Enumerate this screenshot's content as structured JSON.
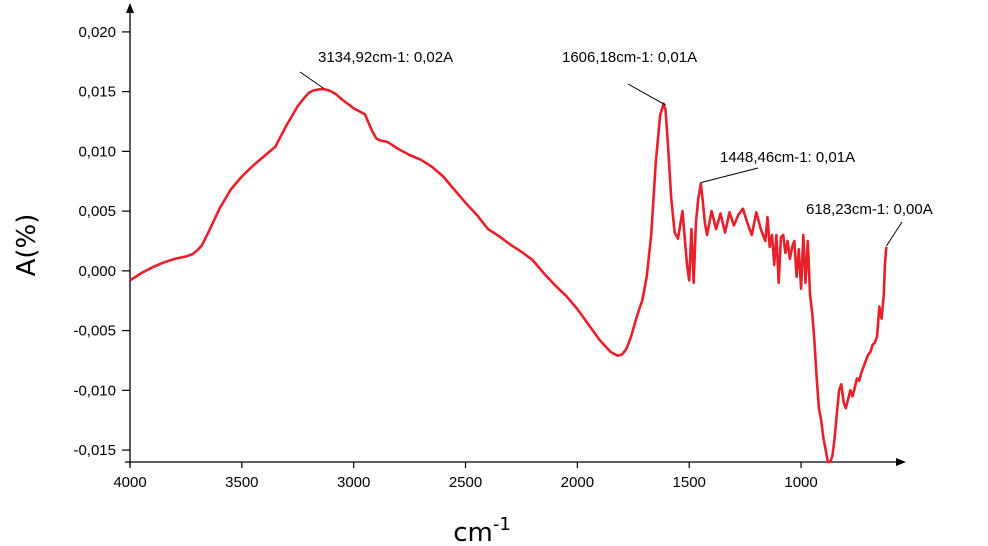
{
  "chart_data": {
    "type": "line",
    "xlabel": "cm",
    "xlabel_superscript": "-1",
    "ylabel": "A(%)",
    "x_reversed": true,
    "xlim": [
      4000,
      580
    ],
    "ylim": [
      -0.016,
      0.022
    ],
    "x_ticks": [
      4000,
      3500,
      3000,
      2500,
      2000,
      1500,
      1000
    ],
    "x_tick_labels": [
      "4000",
      "3500",
      "3000",
      "2500",
      "2000",
      "1500",
      "1000"
    ],
    "y_ticks": [
      -0.015,
      -0.01,
      -0.005,
      0.0,
      0.005,
      0.01,
      0.015,
      0.02
    ],
    "y_tick_labels": [
      "-0,015",
      "-0,010",
      "-0,005",
      "0,000",
      "0,005",
      "0,010",
      "0,015",
      "0,020"
    ],
    "grid": false,
    "line_color": "#e8202a",
    "series": [
      {
        "x": [
          4000,
          3950,
          3900,
          3850,
          3800,
          3750,
          3720,
          3700,
          3680,
          3650,
          3600,
          3550,
          3500,
          3450,
          3400,
          3350,
          3300,
          3250,
          3220,
          3200,
          3180,
          3150,
          3134,
          3110,
          3080,
          3050,
          3020,
          3000,
          2980,
          2950,
          2920,
          2900,
          2880,
          2850,
          2800,
          2750,
          2700,
          2650,
          2600,
          2550,
          2500,
          2450,
          2400,
          2350,
          2300,
          2250,
          2200,
          2150,
          2100,
          2050,
          2000,
          1950,
          1900,
          1850,
          1820,
          1800,
          1780,
          1760,
          1740,
          1720,
          1710,
          1690,
          1670,
          1650,
          1630,
          1615,
          1606,
          1595,
          1580,
          1565,
          1550,
          1530,
          1510,
          1500,
          1490,
          1480,
          1470,
          1460,
          1448,
          1440,
          1430,
          1420,
          1400,
          1380,
          1360,
          1340,
          1320,
          1300,
          1280,
          1260,
          1240,
          1220,
          1200,
          1180,
          1160,
          1150,
          1140,
          1130,
          1120,
          1110,
          1100,
          1090,
          1080,
          1070,
          1060,
          1050,
          1040,
          1030,
          1020,
          1010,
          1000,
          990,
          980,
          970,
          960,
          950,
          940,
          930,
          920,
          910,
          900,
          890,
          880,
          870,
          860,
          850,
          840,
          830,
          820,
          810,
          800,
          790,
          780,
          770,
          760,
          750,
          740,
          730,
          720,
          710,
          700,
          690,
          680,
          670,
          660,
          650,
          640,
          630,
          625,
          620,
          618
        ],
        "y": [
          -0.0008,
          -0.0002,
          0.0003,
          0.0007,
          0.001,
          0.0012,
          0.0014,
          0.0017,
          0.0021,
          0.0032,
          0.0052,
          0.0068,
          0.0079,
          0.0088,
          0.0096,
          0.0104,
          0.0122,
          0.0138,
          0.0145,
          0.0149,
          0.0151,
          0.0152,
          0.0152,
          0.0151,
          0.0148,
          0.0143,
          0.0139,
          0.0136,
          0.0134,
          0.0131,
          0.0118,
          0.0111,
          0.0109,
          0.0108,
          0.0102,
          0.0097,
          0.0093,
          0.0087,
          0.0079,
          0.0068,
          0.0057,
          0.0047,
          0.0035,
          0.0029,
          0.0022,
          0.0016,
          0.0009,
          -0.0002,
          -0.0012,
          -0.0021,
          -0.0032,
          -0.0045,
          -0.0058,
          -0.0068,
          -0.0071,
          -0.007,
          -0.0065,
          -0.0055,
          -0.0042,
          -0.003,
          -0.0025,
          -0.0005,
          0.003,
          0.009,
          0.013,
          0.014,
          0.0135,
          0.0105,
          0.006,
          0.0032,
          0.0027,
          0.005,
          0.0005,
          -0.0008,
          0.0035,
          -0.001,
          0.004,
          0.006,
          0.0073,
          0.006,
          0.004,
          0.003,
          0.005,
          0.0035,
          0.0048,
          0.0032,
          0.0049,
          0.0038,
          0.0047,
          0.0052,
          0.004,
          0.003,
          0.0049,
          0.0035,
          0.0025,
          0.0045,
          0.002,
          0.003,
          0.0005,
          0.003,
          -0.001,
          0.0028,
          0.003,
          0.0015,
          0.0025,
          0.001,
          0.002,
          0.0025,
          -0.0005,
          0.0018,
          -0.0015,
          0.003,
          -0.001,
          0.0025,
          -0.002,
          -0.0035,
          -0.006,
          -0.009,
          -0.0115,
          -0.0125,
          -0.014,
          -0.015,
          -0.016,
          -0.016,
          -0.0155,
          -0.014,
          -0.012,
          -0.01,
          -0.0095,
          -0.011,
          -0.0115,
          -0.0108,
          -0.01,
          -0.0105,
          -0.0098,
          -0.009,
          -0.0092,
          -0.0085,
          -0.008,
          -0.0075,
          -0.007,
          -0.0068,
          -0.0062,
          -0.006,
          -0.0055,
          -0.003,
          -0.004,
          -0.002,
          0.0005,
          0.0018,
          0.002
        ]
      }
    ],
    "annotations": [
      {
        "text": "3134,92cm-1: 0,02A",
        "x": 3134.92,
        "y": 0.0152
      },
      {
        "text": "1606,18cm-1: 0,01A",
        "x": 1606.18,
        "y": 0.0138
      },
      {
        "text": "1448,46cm-1: 0,01A",
        "x": 1448.46,
        "y": 0.0073
      },
      {
        "text": "618,23cm-1: 0,00A",
        "x": 618.23,
        "y": 0.002
      }
    ]
  }
}
